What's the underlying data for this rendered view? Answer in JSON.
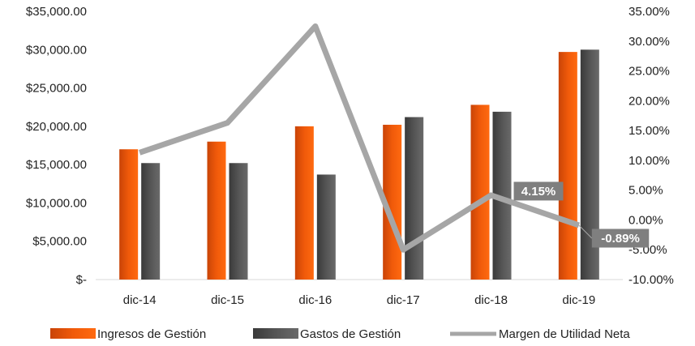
{
  "chart_data": {
    "type": "bar",
    "categories": [
      "dic-14",
      "dic-15",
      "dic-16",
      "dic-17",
      "dic-18",
      "dic-19"
    ],
    "series": [
      {
        "name": "Ingresos de Gestión",
        "type": "bar",
        "axis": "left",
        "color": "#f05a0a",
        "values": [
          17000,
          18000,
          20000,
          20200,
          22800,
          29700
        ]
      },
      {
        "name": "Gastos de Gestión",
        "type": "bar",
        "axis": "left",
        "color": "#555555",
        "values": [
          15200,
          15200,
          13700,
          21200,
          21900,
          30000
        ]
      },
      {
        "name": "Margen de Utilidad Neta",
        "type": "line",
        "axis": "right",
        "color": "#a6a6a6",
        "values": [
          0.113,
          0.163,
          0.325,
          -0.05,
          0.0415,
          -0.0089
        ]
      }
    ],
    "y_left": {
      "ylim": [
        0,
        35000
      ],
      "ticks": [
        0,
        5000,
        10000,
        15000,
        20000,
        25000,
        30000,
        35000
      ],
      "tick_labels": [
        "$-",
        "$5,000.00",
        "$10,000.00",
        "$15,000.00",
        "$20,000.00",
        "$25,000.00",
        "$30,000.00",
        "$35,000.00"
      ]
    },
    "y_right": {
      "ylim": [
        -0.1,
        0.35
      ],
      "ticks": [
        -0.1,
        -0.05,
        0.0,
        0.05,
        0.1,
        0.15,
        0.2,
        0.25,
        0.3,
        0.35
      ],
      "tick_labels": [
        "-10.00%",
        "-5.00%",
        "0.00%",
        "5.00%",
        "10.00%",
        "15.00%",
        "20.00%",
        "25.00%",
        "30.00%",
        "35.00%"
      ]
    },
    "data_labels": [
      {
        "series": 2,
        "index": 4,
        "text": "4.15%"
      },
      {
        "series": 2,
        "index": 5,
        "text": "-0.89%"
      }
    ],
    "label_box_color": "#7f7f7f",
    "grid": false,
    "legend_position": "bottom"
  }
}
